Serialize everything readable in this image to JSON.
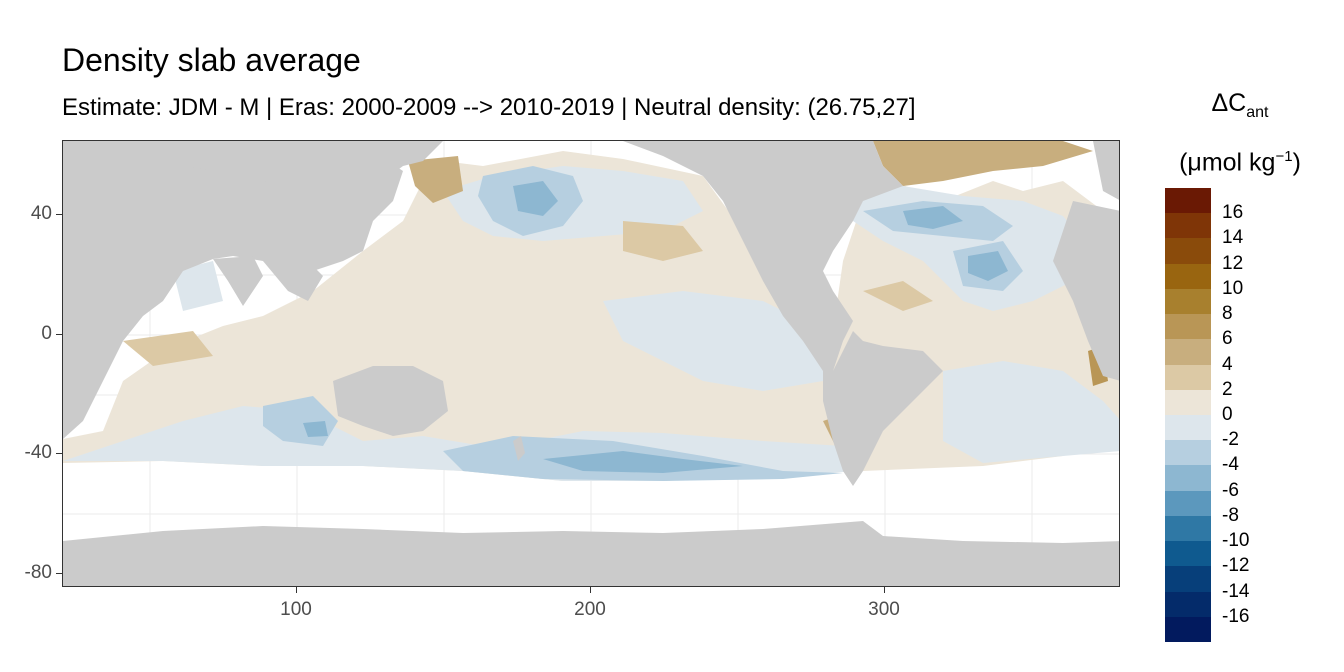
{
  "title": "Density slab average",
  "subtitle": "Estimate: JDM - M | Eras: 2000-2009 --> 2010-2019 | Neutral density: (26.75,27]",
  "legend": {
    "title_prefix": "ΔC",
    "title_subscript": "ant",
    "unit_open": "(μmol kg",
    "unit_sup": "−1",
    "unit_close": ")",
    "labels": [
      "16",
      "14",
      "12",
      "10",
      "8",
      "6",
      "4",
      "2",
      "0",
      "-2",
      "-4",
      "-6",
      "-8",
      "-10",
      "-12",
      "-14",
      "-16"
    ],
    "colors": [
      "#6a1904",
      "#7f3507",
      "#8a4b0b",
      "#996510",
      "#a8802e",
      "#b99656",
      "#c8ae7e",
      "#dcc9a5",
      "#ece5d8",
      "#dde6ec",
      "#b6cfe0",
      "#8db7d1",
      "#5c98bd",
      "#2f78a5",
      "#0f5a8f",
      "#073f7a",
      "#042b6a",
      "#021a5e"
    ]
  },
  "axes": {
    "x_ticks": [
      "100",
      "200",
      "300"
    ],
    "y_ticks": [
      "40",
      "0",
      "-40",
      "-80"
    ],
    "xlim": [
      20,
      380
    ],
    "ylim": [
      -85,
      65
    ]
  },
  "colors": {
    "land": "#cbcbcb",
    "no_data": "#ffffff",
    "gridline": "#ebebeb",
    "near_zero_positive": "#ece5d8",
    "near_zero_negative": "#dde6ec"
  }
}
